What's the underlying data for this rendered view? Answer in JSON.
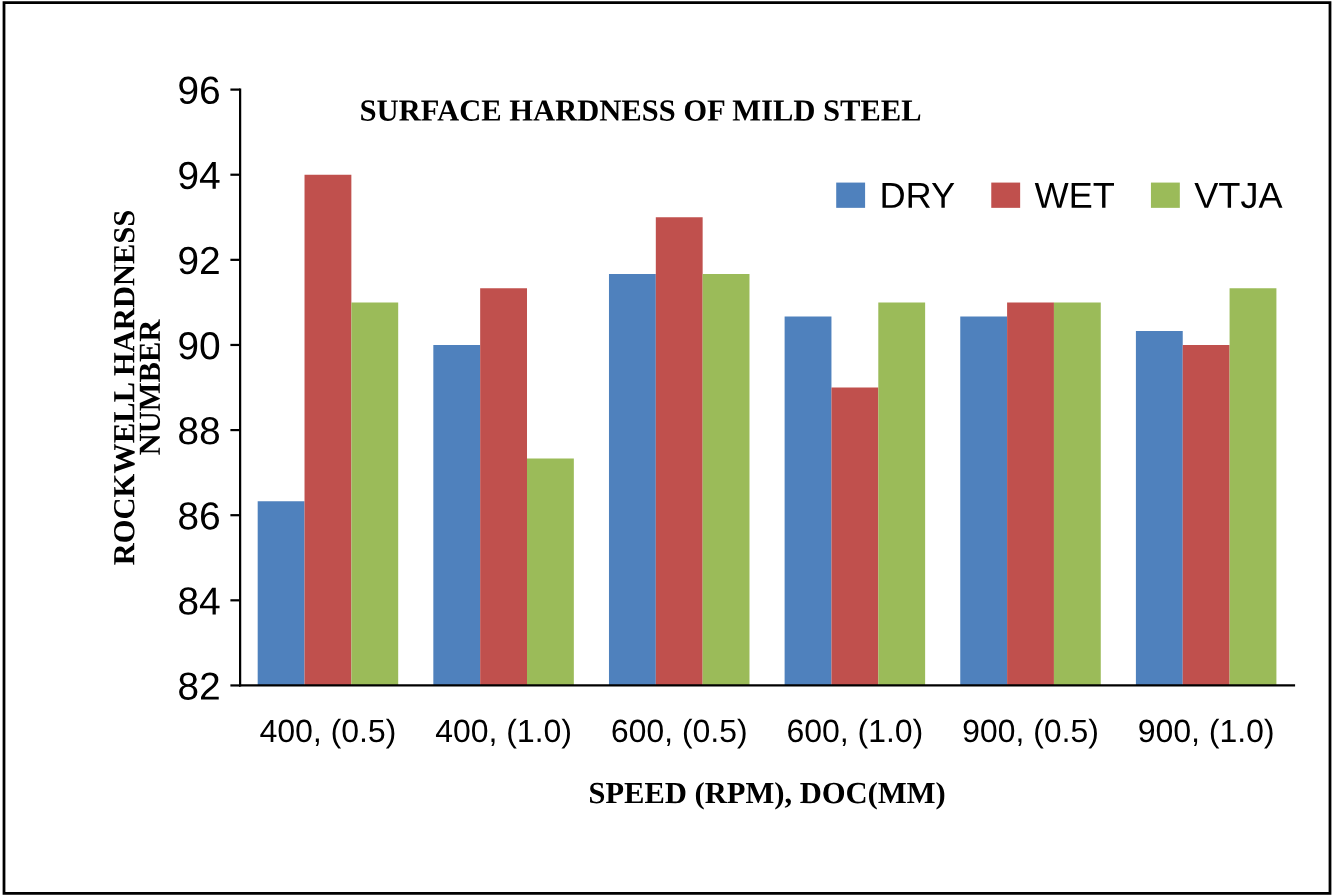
{
  "chart_data": {
    "type": "bar",
    "title": "SURFACE HARDNESS OF MILD STEEL",
    "xlabel": "SPEED (RPM), DOC(MM)",
    "ylabel": "ROCKWELL HARDNESS\nNUMBER",
    "categories": [
      "400, (0.5)",
      "400, (1.0)",
      "600, (0.5)",
      "600, (1.0)",
      "900, (0.5)",
      "900, (1.0)"
    ],
    "series": [
      {
        "name": "DRY",
        "color": "#4f81bd",
        "values": [
          86.33,
          90,
          91.67,
          90.67,
          90.67,
          90.33
        ]
      },
      {
        "name": "WET",
        "color": "#c0504d",
        "values": [
          94,
          91.33,
          93,
          89,
          91,
          90
        ]
      },
      {
        "name": "VTJA",
        "color": "#9bbb59",
        "values": [
          91,
          87.33,
          91.67,
          91,
          91,
          91.33
        ]
      }
    ],
    "ylim": [
      82,
      96
    ],
    "yticks": [
      82,
      84,
      86,
      88,
      90,
      92,
      94,
      96
    ],
    "grid": false,
    "legend": "top right"
  }
}
